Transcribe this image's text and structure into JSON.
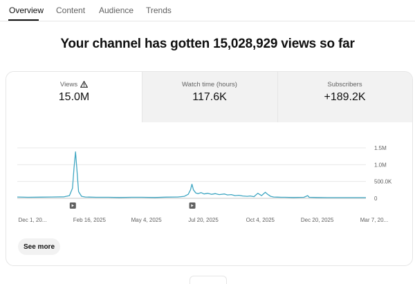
{
  "tabs": [
    {
      "label": "Overview",
      "active": true
    },
    {
      "label": "Content",
      "active": false
    },
    {
      "label": "Audience",
      "active": false
    },
    {
      "label": "Trends",
      "active": false
    }
  ],
  "headline": "Your channel has gotten 15,028,929 views so far",
  "metrics": [
    {
      "label": "Views",
      "value": "15.0M",
      "warning_icon": "warning-triangle-icon",
      "selected": true
    },
    {
      "label": "Watch time (hours)",
      "value": "117.6K",
      "selected": false
    },
    {
      "label": "Subscribers",
      "value": "+189.2K",
      "selected": false
    }
  ],
  "chart_data": {
    "type": "line",
    "series_color": "#3ea6c2",
    "y_ticks": [
      "1.5M",
      "1.0M",
      "500.0K",
      "0"
    ],
    "y_tick_values": [
      1500000,
      1000000,
      500000,
      0
    ],
    "ylim": [
      0,
      1500000
    ],
    "x_tick_labels": [
      "Dec 1, 20...",
      "Feb 16, 2025",
      "May 4, 2025",
      "Jul 20, 2025",
      "Oct 4, 2025",
      "Dec 20, 2025",
      "Mar 7, 20..."
    ],
    "grid": true,
    "x_range": [
      "2024-12-01",
      "2026-03-07"
    ],
    "series": [
      {
        "x": [
          "2024-12-01",
          "2024-12-15",
          "2025-01-01",
          "2025-01-15",
          "2025-02-01",
          "2025-02-08",
          "2025-02-12",
          "2025-02-14",
          "2025-02-16",
          "2025-02-18",
          "2025-02-20",
          "2025-02-24",
          "2025-03-01",
          "2025-03-15",
          "2025-04-01",
          "2025-04-15",
          "2025-05-01",
          "2025-05-15",
          "2025-06-01",
          "2025-06-15",
          "2025-07-01",
          "2025-07-10",
          "2025-07-15",
          "2025-07-18",
          "2025-07-20",
          "2025-07-22",
          "2025-07-25",
          "2025-07-28",
          "2025-08-01",
          "2025-08-05",
          "2025-08-10",
          "2025-08-15",
          "2025-08-20",
          "2025-08-25",
          "2025-09-01",
          "2025-09-05",
          "2025-09-10",
          "2025-09-15",
          "2025-09-20",
          "2025-09-25",
          "2025-10-01",
          "2025-10-05",
          "2025-10-10",
          "2025-10-15",
          "2025-10-20",
          "2025-10-25",
          "2025-10-28",
          "2025-11-01",
          "2025-11-05",
          "2025-11-10",
          "2025-11-15",
          "2025-11-20",
          "2025-12-01",
          "2025-12-15",
          "2025-12-20",
          "2025-12-22",
          "2026-01-01",
          "2026-01-15",
          "2026-02-01",
          "2026-02-15",
          "2026-03-07"
        ],
        "y": [
          40000,
          30000,
          35000,
          40000,
          45000,
          80000,
          300000,
          900000,
          1380000,
          800000,
          200000,
          60000,
          40000,
          30000,
          30000,
          25000,
          30000,
          30000,
          25000,
          35000,
          40000,
          60000,
          120000,
          250000,
          420000,
          250000,
          160000,
          140000,
          170000,
          130000,
          150000,
          120000,
          140000,
          110000,
          130000,
          100000,
          110000,
          80000,
          90000,
          70000,
          60000,
          70000,
          50000,
          150000,
          80000,
          180000,
          120000,
          60000,
          40000,
          35000,
          30000,
          30000,
          25000,
          30000,
          80000,
          30000,
          25000,
          20000,
          20000,
          20000,
          20000
        ]
      }
    ]
  },
  "markers": [
    {
      "icon": "video-marker-icon"
    },
    {
      "icon": "shorts-marker-icon"
    }
  ],
  "see_more_label": "See more"
}
